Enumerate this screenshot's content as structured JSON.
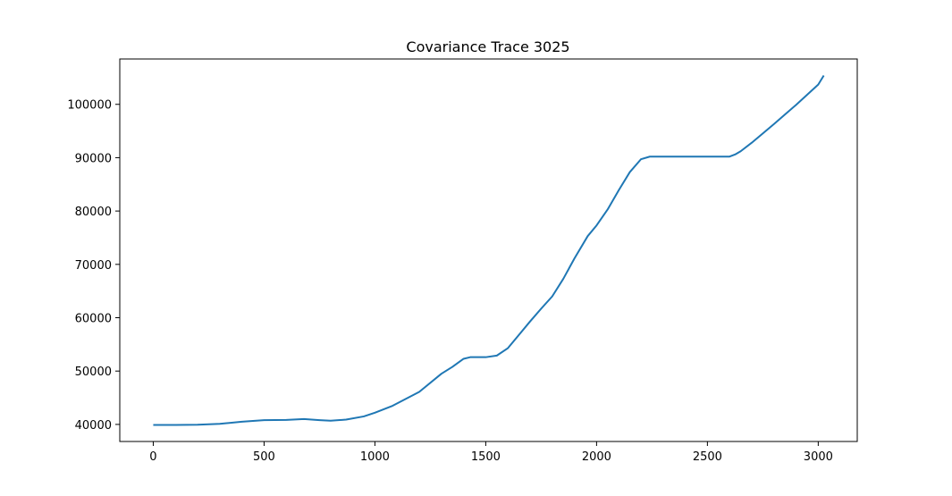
{
  "chart_data": {
    "type": "line",
    "title": "Covariance Trace 3025",
    "xlabel": "",
    "ylabel": "",
    "xlim": [
      -151,
      3176
    ],
    "ylim": [
      36800,
      108500
    ],
    "xticks": [
      0,
      500,
      1000,
      1500,
      2000,
      2500,
      3000
    ],
    "xtick_labels": [
      "0",
      "500",
      "1000",
      "1500",
      "2000",
      "2500",
      "3000"
    ],
    "yticks": [
      40000,
      50000,
      60000,
      70000,
      80000,
      90000,
      100000
    ],
    "ytick_labels": [
      "40000",
      "50000",
      "60000",
      "70000",
      "80000",
      "90000",
      "100000"
    ],
    "grid": false,
    "color": "#1f77b4",
    "series": [
      {
        "x": [
          0,
          100,
          200,
          300,
          400,
          500,
          600,
          680,
          750,
          800,
          870,
          950,
          1000,
          1080,
          1200,
          1300,
          1350,
          1400,
          1430,
          1500,
          1550,
          1600,
          1650,
          1700,
          1750,
          1800,
          1850,
          1900,
          1960,
          2000,
          2050,
          2100,
          2150,
          2200,
          2240,
          2300,
          2400,
          2500,
          2600,
          2625,
          2650,
          2700,
          2800,
          2900,
          2950,
          3000,
          3025
        ],
        "y": [
          39900,
          39900,
          39950,
          40100,
          40500,
          40800,
          40850,
          41000,
          40800,
          40700,
          40900,
          41500,
          42200,
          43500,
          46100,
          49500,
          50800,
          52300,
          52600,
          52600,
          52900,
          54300,
          56800,
          59300,
          61700,
          64000,
          67300,
          71100,
          75300,
          77300,
          80300,
          83900,
          87300,
          89700,
          90200,
          90200,
          90200,
          90200,
          90200,
          90600,
          91200,
          92800,
          96300,
          99900,
          101800,
          103700,
          105400
        ]
      }
    ]
  }
}
